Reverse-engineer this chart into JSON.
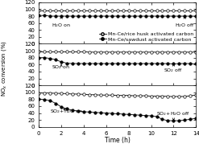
{
  "time": [
    0,
    0.5,
    1,
    1.5,
    2,
    2.5,
    3,
    3.5,
    4,
    4.5,
    5,
    5.5,
    6,
    6.5,
    7,
    7.5,
    8,
    8.5,
    9,
    9.5,
    10,
    10.5,
    11,
    11.5,
    12,
    12.5,
    13,
    13.5,
    14
  ],
  "panel1_open": [
    97,
    97,
    97,
    97,
    97,
    97,
    97,
    97,
    97,
    97,
    97,
    97,
    97,
    97,
    97,
    97,
    97,
    97,
    97,
    97,
    97,
    97,
    97,
    97,
    97,
    97,
    97,
    97,
    97
  ],
  "panel1_fill": [
    82,
    82,
    80,
    80,
    80,
    80,
    80,
    80,
    80,
    80,
    80,
    80,
    80,
    80,
    80,
    80,
    80,
    80,
    80,
    80,
    80,
    80,
    80,
    80,
    80,
    80,
    80,
    80,
    80
  ],
  "panel2_open": [
    97,
    97,
    97,
    97,
    97,
    97,
    97,
    97,
    97,
    96,
    96,
    96,
    96,
    96,
    96,
    96,
    96,
    96,
    96,
    96,
    96,
    96,
    96,
    96,
    96,
    96,
    96,
    96,
    96
  ],
  "panel2_fill": [
    80,
    80,
    78,
    74,
    68,
    64,
    63,
    63,
    63,
    63,
    63,
    63,
    63,
    63,
    63,
    63,
    63,
    63,
    63,
    63,
    63,
    63,
    63,
    63,
    62,
    63,
    63,
    63,
    62
  ],
  "panel3_open": [
    98,
    98,
    98,
    97,
    97,
    96,
    95,
    95,
    94,
    93,
    93,
    92,
    92,
    92,
    91,
    91,
    91,
    90,
    90,
    90,
    89,
    89,
    89,
    88,
    88,
    88,
    88,
    90,
    92
  ],
  "panel3_fill": [
    80,
    79,
    76,
    68,
    58,
    52,
    48,
    46,
    44,
    43,
    42,
    41,
    40,
    39,
    38,
    37,
    36,
    35,
    34,
    33,
    32,
    30,
    22,
    18,
    18,
    18,
    20,
    22,
    25
  ],
  "panel1_legend_open": "Mn-Ce/rice husk activated carbon",
  "panel1_legend_fill": "Mn-Ce/sawdust activated carbon",
  "ylabel": "NO$_x$ conversion (%)",
  "xlabel": "Time (h)",
  "ylim": [
    0,
    120
  ],
  "yticks": [
    0,
    20,
    40,
    60,
    80,
    100,
    120
  ],
  "xlim": [
    0,
    14
  ],
  "xticks": [
    0,
    2,
    4,
    6,
    8,
    10,
    12,
    14
  ]
}
